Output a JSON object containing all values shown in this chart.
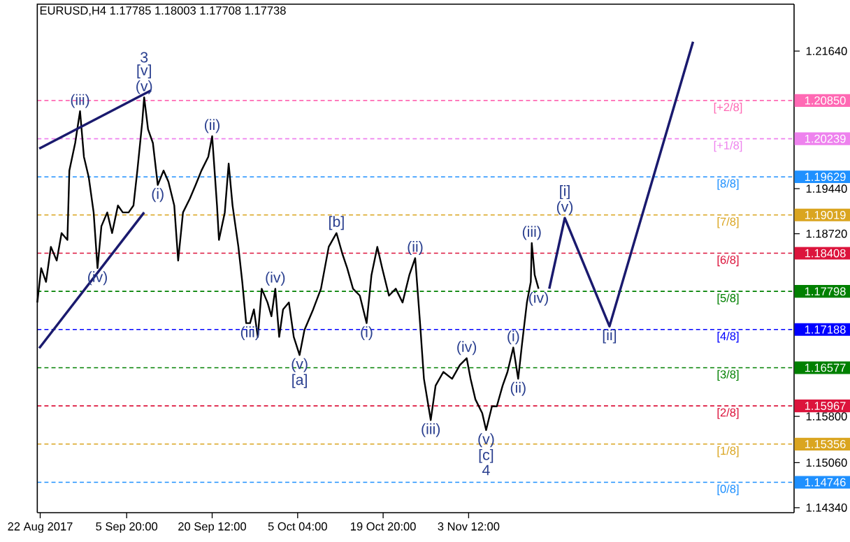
{
  "chart_data": {
    "type": "line",
    "title": "EURUSD,H4  1.17785 1.18003 1.17708 1.17738",
    "marker": "none",
    "line_style": "solid",
    "xlim": [
      "2017-08-21T12:00",
      "2017-12-29T08:00"
    ],
    "ylim": [
      1.1426,
      1.2239
    ],
    "xticks": [
      {
        "value": "2017-08-22",
        "label": "22 Aug 2017"
      },
      {
        "value": "2017-09-05T20:00",
        "label": "5 Sep 20:00"
      },
      {
        "value": "2017-09-20T12:00",
        "label": "20 Sep 12:00"
      },
      {
        "value": "2017-10-05T04:00",
        "label": "5 Oct 04:00"
      },
      {
        "value": "2017-10-19T20:00",
        "label": "19 Oct 20:00"
      },
      {
        "value": "2017-11-03T12:00",
        "label": "3 Nov 12:00"
      }
    ],
    "yticks": [
      {
        "value": 1.2164,
        "label": "1.21640"
      },
      {
        "value": 1.1944,
        "label": "1.19440"
      },
      {
        "value": 1.1872,
        "label": "1.18720"
      },
      {
        "value": 1.158,
        "label": "1.15800"
      },
      {
        "value": 1.1506,
        "label": "1.15060"
      },
      {
        "value": 1.1434,
        "label": "1.14340"
      }
    ],
    "series": [
      {
        "color": "#000000",
        "x": [
          "2017-08-21T12:00",
          "2017-08-22T04:00",
          "2017-08-23T00:00",
          "2017-08-23T20:00",
          "2017-08-24T20:00",
          "2017-08-25T16:00",
          "2017-08-26T16:00",
          "2017-08-27T00:00",
          "2017-08-28T00:00",
          "2017-08-28T20:00",
          "2017-08-29T12:00",
          "2017-08-30T08:00",
          "2017-08-31T04:00",
          "2017-08-31T20:00",
          "2017-09-01T12:00",
          "2017-09-02T12:00",
          "2017-09-03T08:00",
          "2017-09-04T08:00",
          "2017-09-05T04:00",
          "2017-09-06T04:00",
          "2017-09-07T00:00",
          "2017-09-07T16:00",
          "2017-09-08T12:00",
          "2017-09-08T20:00",
          "2017-09-09T12:00",
          "2017-09-10T08:00",
          "2017-09-11T04:00",
          "2017-09-12T04:00",
          "2017-09-13T00:00",
          "2017-09-14T00:00",
          "2017-09-14T16:00",
          "2017-09-15T12:00",
          "2017-09-16T16:00",
          "2017-09-17T16:00",
          "2017-09-18T16:00",
          "2017-09-19T20:00",
          "2017-09-20T12:00",
          "2017-09-21T08:00",
          "2017-09-21T16:00",
          "2017-09-22T16:00",
          "2017-09-23T08:00",
          "2017-09-24T00:00",
          "2017-09-25T00:00",
          "2017-09-25T16:00",
          "2017-09-26T08:00",
          "2017-09-27T00:00",
          "2017-09-27T16:00",
          "2017-09-28T08:00",
          "2017-09-29T00:00",
          "2017-09-30T00:00",
          "2017-09-30T16:00",
          "2017-10-01T08:00",
          "2017-10-02T00:00",
          "2017-10-02T16:00",
          "2017-10-03T16:00",
          "2017-10-04T12:00",
          "2017-10-05T12:00",
          "2017-10-06T08:00",
          "2017-10-07T20:00",
          "2017-10-09T04:00",
          "2017-10-10T12:00",
          "2017-10-11T20:00",
          "2017-10-12T20:00",
          "2017-10-13T16:00",
          "2017-10-14T16:00",
          "2017-10-15T20:00",
          "2017-10-17T00:00",
          "2017-10-17T20:00",
          "2017-10-18T20:00",
          "2017-10-19T16:00",
          "2017-10-20T20:00",
          "2017-10-22T00:00",
          "2017-10-23T04:00",
          "2017-10-24T08:00",
          "2017-10-25T08:00",
          "2017-10-26T04:00",
          "2017-10-26T20:00",
          "2017-10-28T00:00",
          "2017-10-28T20:00",
          "2017-10-30T04:00",
          "2017-10-31T16:00",
          "2017-11-02T00:00",
          "2017-11-03T04:00",
          "2017-11-03T20:00",
          "2017-11-04T16:00",
          "2017-11-05T20:00",
          "2017-11-06T12:00",
          "2017-11-07T12:00",
          "2017-11-08T08:00",
          "2017-11-09T08:00",
          "2017-11-10T04:00",
          "2017-11-11T04:00",
          "2017-11-12T00:00",
          "2017-11-12T16:00",
          "2017-11-13T12:00",
          "2017-11-14T04:00",
          "2017-11-14T08:00",
          "2017-11-14T20:00",
          "2017-11-15T12:00"
        ],
        "values": [
          1.1762,
          1.1817,
          1.1795,
          1.1851,
          1.1829,
          1.1873,
          1.1862,
          1.1973,
          1.2017,
          1.2068,
          1.1995,
          1.1962,
          1.1906,
          1.1817,
          1.1884,
          1.1906,
          1.1873,
          1.1917,
          1.1906,
          1.1906,
          1.1917,
          1.1973,
          1.205,
          1.209,
          1.2039,
          1.2017,
          1.195,
          1.1973,
          1.1955,
          1.1917,
          1.1829,
          1.1906,
          1.1928,
          1.195,
          1.1973,
          1.1995,
          1.2028,
          1.1917,
          1.1862,
          1.1906,
          1.1984,
          1.1917,
          1.1851,
          1.1795,
          1.1729,
          1.1729,
          1.1751,
          1.1707,
          1.1784,
          1.1762,
          1.174,
          1.1784,
          1.1707,
          1.1751,
          1.1762,
          1.1707,
          1.1678,
          1.1718,
          1.1751,
          1.1784,
          1.1851,
          1.1873,
          1.184,
          1.1817,
          1.1784,
          1.1773,
          1.1729,
          1.1806,
          1.1851,
          1.1817,
          1.1773,
          1.1784,
          1.1762,
          1.1806,
          1.1833,
          1.1729,
          1.164,
          1.1574,
          1.1629,
          1.1651,
          1.164,
          1.1662,
          1.1673,
          1.164,
          1.1607,
          1.1585,
          1.1558,
          1.1596,
          1.1596,
          1.1629,
          1.1651,
          1.169,
          1.164,
          1.1696,
          1.1762,
          1.1795,
          1.1857,
          1.1806,
          1.1784
        ]
      },
      {
        "color": "#1a1a6e",
        "x": [
          "2017-11-17T08:00",
          "2017-11-20T00:00",
          "2017-11-27T16:00",
          "2017-12-12T00:00"
        ],
        "values": [
          1.1784,
          1.1897,
          1.1724,
          1.2179
        ]
      },
      {
        "color": "#1a1a6e",
        "x": [
          "2017-08-21T20:00",
          "2017-09-08T20:00"
        ],
        "values": [
          1.1689,
          1.1906
        ]
      },
      {
        "color": "#1a1a6e",
        "x": [
          "2017-08-21T20:00",
          "2017-09-10T00:00"
        ],
        "values": [
          1.2008,
          1.2101
        ]
      }
    ],
    "ref_lines": [
      {
        "axis": "y",
        "value": 1.2085,
        "label": "1.20850",
        "color": "#ff69b4",
        "line_style": "dashed"
      },
      {
        "axis": "y",
        "value": 1.20239,
        "label": "1.20239",
        "color": "#ee82ee",
        "line_style": "dashed"
      },
      {
        "axis": "y",
        "value": 1.19629,
        "label": "1.19629",
        "color": "#1e90ff",
        "line_style": "dashed"
      },
      {
        "axis": "y",
        "value": 1.19019,
        "label": "1.19019",
        "color": "#daa520",
        "line_style": "dashed"
      },
      {
        "axis": "y",
        "value": 1.18408,
        "label": "1.18408",
        "color": "#dc143c",
        "line_style": "dashed"
      },
      {
        "axis": "y",
        "value": 1.17798,
        "label": "1.17798",
        "color": "#008000",
        "line_style": "dashed"
      },
      {
        "axis": "y",
        "value": 1.17188,
        "label": "1.17188",
        "color": "#0000ff",
        "line_style": "dashed"
      },
      {
        "axis": "y",
        "value": 1.16577,
        "label": "1.16577",
        "color": "#008000",
        "line_style": "dashed"
      },
      {
        "axis": "y",
        "value": 1.15967,
        "label": "1.15967",
        "color": "#dc143c",
        "line_style": "dashed"
      },
      {
        "axis": "y",
        "value": 1.15356,
        "label": "1.15356",
        "color": "#daa520",
        "line_style": "dashed"
      },
      {
        "axis": "y",
        "value": 1.14746,
        "label": "1.14746",
        "color": "#1e90ff",
        "line_style": "dashed"
      }
    ],
    "annotations": [
      {
        "text": "[+2/8]",
        "x": "2017-12-18T00:00",
        "y": 1.2085
      },
      {
        "text": "[+1/8]",
        "x": "2017-12-18T00:00",
        "y": 1.20239
      },
      {
        "text": "[8/8]",
        "x": "2017-12-18T00:00",
        "y": 1.19629
      },
      {
        "text": "[7/8]",
        "x": "2017-12-18T00:00",
        "y": 1.19019
      },
      {
        "text": "[6/8]",
        "x": "2017-12-18T00:00",
        "y": 1.18408
      },
      {
        "text": "[5/8]",
        "x": "2017-12-18T00:00",
        "y": 1.17798
      },
      {
        "text": "[4/8]",
        "x": "2017-12-18T00:00",
        "y": 1.17188
      },
      {
        "text": "[3/8]",
        "x": "2017-12-18T00:00",
        "y": 1.16577
      },
      {
        "text": "[2/8]",
        "x": "2017-12-18T00:00",
        "y": 1.15967
      },
      {
        "text": "[1/8]",
        "x": "2017-12-18T00:00",
        "y": 1.15356
      },
      {
        "text": "[0/8]",
        "x": "2017-12-18T00:00",
        "y": 1.14746
      },
      {
        "text": "3",
        "x": "2017-09-08T20:00",
        "y": 1.209
      },
      {
        "text": "[v]",
        "x": "2017-09-08T20:00",
        "y": 1.209
      },
      {
        "text": "(v)",
        "x": "2017-09-08T20:00",
        "y": 1.209
      },
      {
        "text": "(iii)",
        "x": "2017-08-28T20:00",
        "y": 1.2068
      },
      {
        "text": "(iv)",
        "x": "2017-08-31T20:00",
        "y": 1.1817
      },
      {
        "text": "(i)",
        "x": "2017-09-11T04:00",
        "y": 1.195
      },
      {
        "text": "(ii)",
        "x": "2017-09-20T12:00",
        "y": 1.2028
      },
      {
        "text": "(iii)",
        "x": "2017-09-27T00:00",
        "y": 1.1729
      },
      {
        "text": "(iv)",
        "x": "2017-10-01T08:00",
        "y": 1.1784
      },
      {
        "text": "(v)",
        "x": "2017-10-05T12:00",
        "y": 1.1678
      },
      {
        "text": "[a]",
        "x": "2017-10-05T12:00",
        "y": 1.1678
      },
      {
        "text": "[b]",
        "x": "2017-10-11T20:00",
        "y": 1.1873
      },
      {
        "text": "(i)",
        "x": "2017-10-17T00:00",
        "y": 1.1729
      },
      {
        "text": "(ii)",
        "x": "2017-10-25T08:00",
        "y": 1.1833
      },
      {
        "text": "(iii)",
        "x": "2017-10-28T00:00",
        "y": 1.1574
      },
      {
        "text": "(iv)",
        "x": "2017-11-03T04:00",
        "y": 1.1673
      },
      {
        "text": "(v)",
        "x": "2017-11-06T12:00",
        "y": 1.1558
      },
      {
        "text": "[c]",
        "x": "2017-11-06T12:00",
        "y": 1.1558
      },
      {
        "text": "4",
        "x": "2017-11-06T12:00",
        "y": 1.1558
      },
      {
        "text": "(i)",
        "x": "2017-11-11T04:00",
        "y": 1.169
      },
      {
        "text": "(ii)",
        "x": "2017-11-12T00:00",
        "y": 1.164
      },
      {
        "text": "(iii)",
        "x": "2017-11-14T08:00",
        "y": 1.1857
      },
      {
        "text": "(iv)",
        "x": "2017-11-15T12:00",
        "y": 1.1784
      },
      {
        "text": "[i]",
        "x": "2017-11-20T00:00",
        "y": 1.1897
      },
      {
        "text": "(v)",
        "x": "2017-11-20T00:00",
        "y": 1.1897
      },
      {
        "text": "[ii]",
        "x": "2017-11-27T16:00",
        "y": 1.1724
      }
    ]
  }
}
